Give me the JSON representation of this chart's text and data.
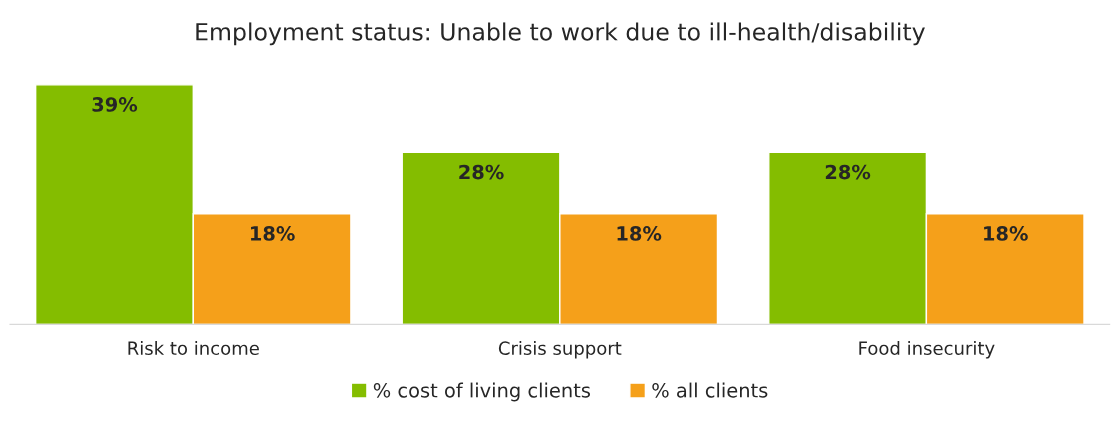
{
  "chart_data": {
    "type": "bar",
    "title": "Employment status: Unable to work due to ill-health/disability",
    "categories": [
      "Risk to income",
      "Crisis support",
      "Food insecurity"
    ],
    "series": [
      {
        "name": "% cost of living clients",
        "color": "#84bd00",
        "values": [
          39,
          28,
          28
        ],
        "value_labels": [
          "39%",
          "28%",
          "28%"
        ]
      },
      {
        "name": "% all clients",
        "color": "#f5a01a",
        "values": [
          18,
          18,
          18
        ],
        "value_labels": [
          "18%",
          "18%",
          "18%"
        ]
      }
    ],
    "grid": false,
    "legend": "bottom"
  }
}
